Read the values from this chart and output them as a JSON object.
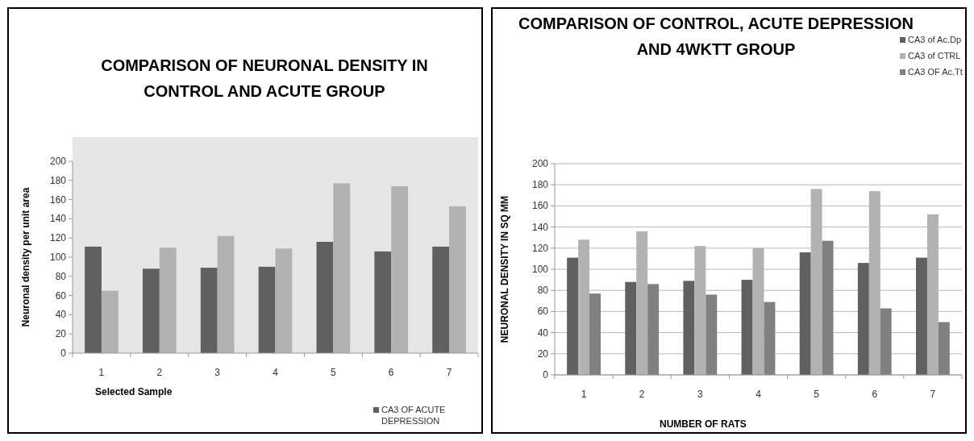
{
  "chart_data": [
    {
      "type": "bar",
      "title": "COMPARISON OF NEURONAL DENSITY IN CONTROL AND ACUTE GROUP",
      "xlabel": "Selected Sample",
      "ylabel": "Neuronal density per unit area",
      "categories": [
        "1",
        "2",
        "3",
        "4",
        "5",
        "6",
        "7"
      ],
      "series": [
        {
          "name": "CA3 OF ACUTE DEPRESSION",
          "color": "#606060",
          "values": [
            111,
            88,
            89,
            90,
            116,
            106,
            111
          ]
        },
        {
          "color": "#b2b2b2",
          "values": [
            65,
            110,
            122,
            109,
            177,
            174,
            153
          ]
        }
      ],
      "ylim": [
        0,
        200
      ],
      "yticks": [
        0,
        20,
        40,
        60,
        80,
        100,
        120,
        140,
        160,
        180,
        200
      ],
      "grid": false,
      "legend": "bottom right"
    },
    {
      "type": "bar",
      "title": "COMPARISON OF CONTROL, ACUTE DEPRESSION AND 4WKTT GROUP",
      "xlabel": "NUMBER OF RATS",
      "ylabel": "NEURONAL DENSITY IN SQ MM",
      "categories": [
        "1",
        "2",
        "3",
        "4",
        "5",
        "6",
        "7"
      ],
      "series": [
        {
          "name": "CA3 of Ac.Dp",
          "color": "#606060",
          "values": [
            111,
            88,
            89,
            90,
            116,
            106,
            111
          ]
        },
        {
          "name": "CA3 of CTRL",
          "color": "#b2b2b2",
          "values": [
            128,
            136,
            122,
            120,
            176,
            174,
            152
          ]
        },
        {
          "name": "CA3 OF Ac.Tt",
          "color": "#808080",
          "values": [
            77,
            86,
            76,
            69,
            127,
            63,
            50
          ]
        }
      ],
      "ylim": [
        0,
        200
      ],
      "yticks": [
        0,
        20,
        40,
        60,
        80,
        100,
        120,
        140,
        160,
        180,
        200
      ],
      "grid": "y",
      "legend": "top right"
    }
  ]
}
